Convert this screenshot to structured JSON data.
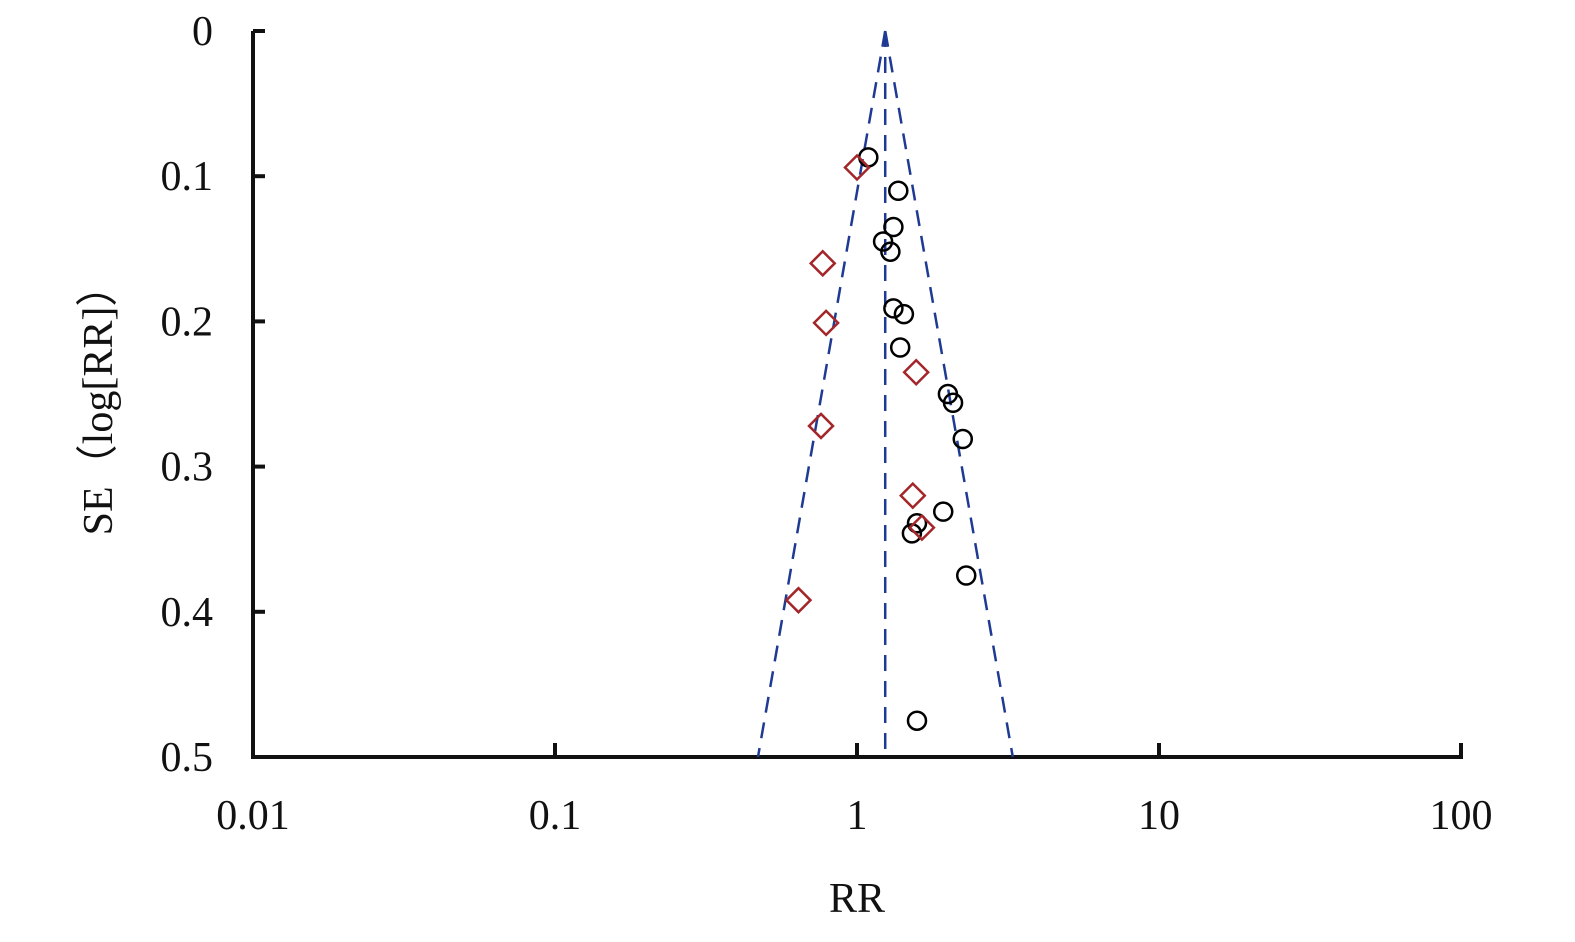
{
  "chart_data": {
    "type": "funnel",
    "x_label": "RR",
    "y_label": "SE（log[RR]）",
    "xscale": "log",
    "y_inverted": true,
    "xlim": [
      0.01,
      100
    ],
    "xticks": [
      0.01,
      0.1,
      1,
      10,
      100
    ],
    "ylim": [
      0,
      0.5
    ],
    "yticks": [
      0,
      0.1,
      0.2,
      0.3,
      0.4,
      0.5
    ],
    "pooled_estimate": 1.24,
    "funnel_limits_at_max_se": [
      0.47,
      3.28
    ],
    "funnel_color": "#1f3a93",
    "series": [
      {
        "color": "#000000",
        "marker": "circle",
        "x": [
          1.09,
          1.37,
          1.32,
          1.22,
          1.29,
          1.32,
          1.43,
          1.39,
          2.0,
          2.08,
          2.24,
          1.93,
          1.58,
          1.52,
          2.3,
          1.58
        ],
        "values": [
          0.087,
          0.11,
          0.135,
          0.145,
          0.152,
          0.191,
          0.195,
          0.218,
          0.25,
          0.256,
          0.281,
          0.331,
          0.339,
          0.346,
          0.375,
          0.475
        ]
      },
      {
        "color": "#a3262a",
        "marker": "diamond",
        "x": [
          1.0,
          0.77,
          0.79,
          1.57,
          0.76,
          1.53,
          1.64,
          0.64
        ],
        "values": [
          0.094,
          0.16,
          0.201,
          0.235,
          0.272,
          0.32,
          0.342,
          0.392
        ]
      }
    ]
  }
}
